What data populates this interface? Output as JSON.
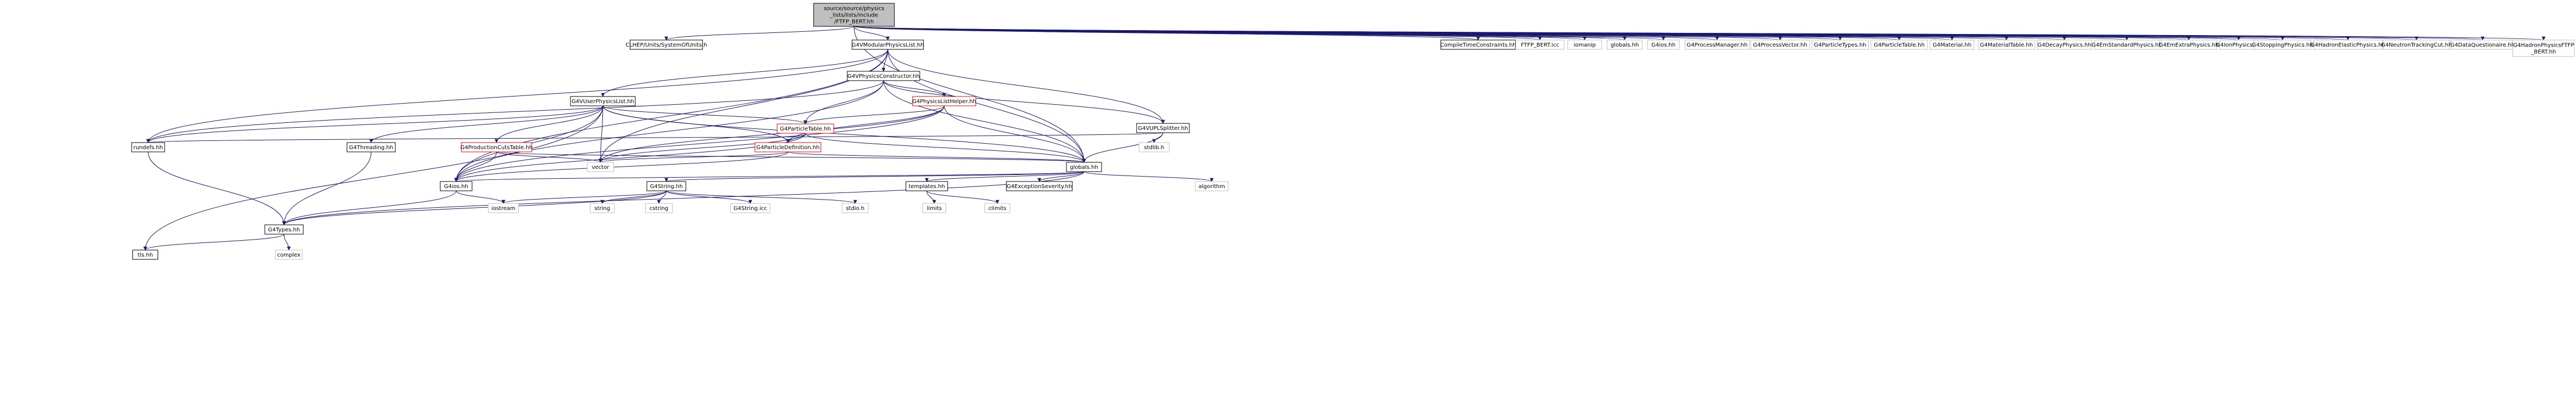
{
  "colors": {
    "edge": "#191970",
    "border_default": "#bfbfbf",
    "border_documented": "#000000",
    "border_missing": "#ff0000",
    "root_fill": "#bfbfbf",
    "fill": "#ffffff"
  },
  "nodes": [
    {
      "id": "root",
      "lines": [
        "source/source/physics",
        "_lists/lists/include",
        "/FTFP_BERT.hh"
      ],
      "style": "root"
    },
    {
      "id": "units",
      "lines": [
        "CLHEP/Units/SystemOfUnits.h"
      ],
      "style": "documented"
    },
    {
      "id": "modular",
      "lines": [
        "G4VModularPhysicsList.hh"
      ],
      "style": "documented"
    },
    {
      "id": "compile",
      "lines": [
        "CompileTimeConstraints.hh"
      ],
      "style": "documented"
    },
    {
      "id": "ftfpicc",
      "lines": [
        "FTFP_BERT.icc"
      ],
      "style": "default"
    },
    {
      "id": "iomanip",
      "lines": [
        "iomanip"
      ],
      "style": "default"
    },
    {
      "id": "globals_top",
      "lines": [
        "globals.hh"
      ],
      "style": "default"
    },
    {
      "id": "g4ios_top",
      "lines": [
        "G4ios.hh"
      ],
      "style": "default"
    },
    {
      "id": "procman",
      "lines": [
        "G4ProcessManager.hh"
      ],
      "style": "default"
    },
    {
      "id": "procvec",
      "lines": [
        "G4ProcessVector.hh"
      ],
      "style": "default"
    },
    {
      "id": "parttypes",
      "lines": [
        "G4ParticleTypes.hh"
      ],
      "style": "default"
    },
    {
      "id": "parttable_top",
      "lines": [
        "G4ParticleTable.hh"
      ],
      "style": "default"
    },
    {
      "id": "material",
      "lines": [
        "G4Material.hh"
      ],
      "style": "default"
    },
    {
      "id": "mattable",
      "lines": [
        "G4MaterialTable.hh"
      ],
      "style": "default"
    },
    {
      "id": "decay",
      "lines": [
        "G4DecayPhysics.hh"
      ],
      "style": "default"
    },
    {
      "id": "emstd",
      "lines": [
        "G4EmStandardPhysics.hh"
      ],
      "style": "default"
    },
    {
      "id": "emextra",
      "lines": [
        "G4EmExtraPhysics.hh"
      ],
      "style": "default"
    },
    {
      "id": "ion",
      "lines": [
        "G4IonPhysics.hh"
      ],
      "style": "default"
    },
    {
      "id": "stopping",
      "lines": [
        "G4StoppingPhysics.hh"
      ],
      "style": "default"
    },
    {
      "id": "hadel",
      "lines": [
        "G4HadronElasticPhysics.hh"
      ],
      "style": "default"
    },
    {
      "id": "neutron",
      "lines": [
        "G4NeutronTrackingCut.hh"
      ],
      "style": "default"
    },
    {
      "id": "dataq",
      "lines": [
        "G4DataQuestionaire.hh"
      ],
      "style": "default"
    },
    {
      "id": "hadftfp",
      "lines": [
        "G4HadronPhysicsFTFP",
        "_BERT.hh"
      ],
      "style": "default"
    },
    {
      "id": "constructor",
      "lines": [
        "G4VPhysicsConstructor.hh"
      ],
      "style": "documented"
    },
    {
      "id": "userpl",
      "lines": [
        "G4VUserPhysicsList.hh"
      ],
      "style": "documented"
    },
    {
      "id": "plhelper",
      "lines": [
        "G4PhysicsListHelper.hh"
      ],
      "style": "missing"
    },
    {
      "id": "uplsplitter",
      "lines": [
        "G4VUPLSplitter.hh"
      ],
      "style": "documented"
    },
    {
      "id": "parttable",
      "lines": [
        "G4ParticleTable.hh"
      ],
      "style": "missing"
    },
    {
      "id": "rundefs",
      "lines": [
        "rundefs.hh"
      ],
      "style": "documented"
    },
    {
      "id": "threading",
      "lines": [
        "G4Threading.hh"
      ],
      "style": "documented"
    },
    {
      "id": "prodcuts",
      "lines": [
        "G4ProductionCutsTable.hh"
      ],
      "style": "missing"
    },
    {
      "id": "partdef",
      "lines": [
        "G4ParticleDefinition.hh"
      ],
      "style": "missing"
    },
    {
      "id": "stdlib",
      "lines": [
        "stdlib.h"
      ],
      "style": "default"
    },
    {
      "id": "vector",
      "lines": [
        "vector"
      ],
      "style": "default"
    },
    {
      "id": "globals",
      "lines": [
        "globals.hh"
      ],
      "style": "documented"
    },
    {
      "id": "g4ios",
      "lines": [
        "G4ios.hh"
      ],
      "style": "documented"
    },
    {
      "id": "g4string",
      "lines": [
        "G4String.hh"
      ],
      "style": "documented"
    },
    {
      "id": "templates",
      "lines": [
        "templates.hh"
      ],
      "style": "documented"
    },
    {
      "id": "exception",
      "lines": [
        "G4ExceptionSeverity.hh"
      ],
      "style": "documented"
    },
    {
      "id": "algorithm",
      "lines": [
        "algorithm"
      ],
      "style": "default"
    },
    {
      "id": "iostream",
      "lines": [
        "iostream"
      ],
      "style": "default"
    },
    {
      "id": "string",
      "lines": [
        "string"
      ],
      "style": "default"
    },
    {
      "id": "cstring",
      "lines": [
        "cstring"
      ],
      "style": "default"
    },
    {
      "id": "g4stringicc",
      "lines": [
        "G4String.icc"
      ],
      "style": "default"
    },
    {
      "id": "stdio",
      "lines": [
        "stdio.h"
      ],
      "style": "default"
    },
    {
      "id": "limits",
      "lines": [
        "limits"
      ],
      "style": "default"
    },
    {
      "id": "climits",
      "lines": [
        "climits"
      ],
      "style": "default"
    },
    {
      "id": "g4types",
      "lines": [
        "G4Types.hh"
      ],
      "style": "documented"
    },
    {
      "id": "tls",
      "lines": [
        "tls.hh"
      ],
      "style": "documented"
    },
    {
      "id": "complex",
      "lines": [
        "complex"
      ],
      "style": "default"
    }
  ]
}
